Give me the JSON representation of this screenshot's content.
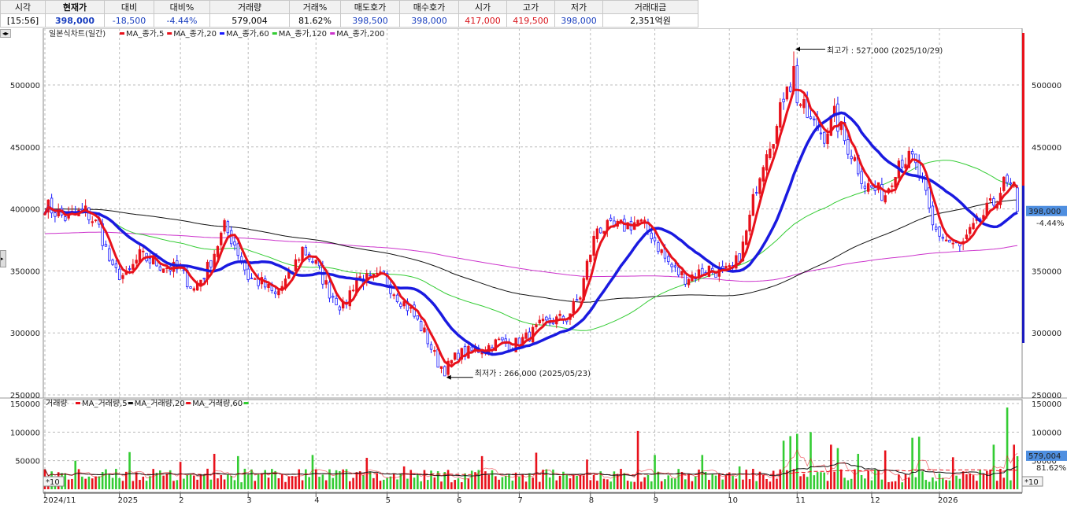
{
  "header": {
    "labels": [
      "시각",
      "현재가",
      "대비",
      "대비%",
      "거래량",
      "거래%",
      "매도호가",
      "매수호가",
      "시가",
      "고가",
      "저가",
      "거래대금"
    ],
    "values": [
      "[15:56]",
      "398,000",
      "-18,500",
      "-4.44%",
      "579,004",
      "81.62%",
      "398,500",
      "398,000",
      "417,000",
      "419,500",
      "398,000",
      "2,351억원"
    ]
  },
  "legend_price": {
    "title": "일본식차트(일간)",
    "items": [
      {
        "name": "MA_종가,5",
        "color": "#e8111b"
      },
      {
        "name": "MA_종가,20",
        "color": "#e8111b"
      },
      {
        "name": "MA_종가,60",
        "color": "#1a1aff"
      },
      {
        "name": "MA_종가,120",
        "color": "#33cc33"
      },
      {
        "name": "MA_종가,200",
        "color": "#cc33cc"
      }
    ]
  },
  "legend_volume": {
    "title": "거래량",
    "items": [
      {
        "name": "MA_거래량,5",
        "color": "#e8111b"
      },
      {
        "name": "MA_거래량,20",
        "color": "#111111"
      },
      {
        "name": "MA_거래량,60",
        "color": "#e8111b"
      }
    ],
    "last_marker_color": "#33cc33"
  },
  "annotations": {
    "high": "최고가 : 527,000 (2025/10/29)",
    "low": "최저가 : 266,000 (2025/05/23)"
  },
  "price_tag": {
    "value": "398,000",
    "change": "-4.44%"
  },
  "volume_tag": {
    "value": "579,004",
    "pct": "81.62%"
  },
  "scale_marker": "*10",
  "chart_data": {
    "type": "candlestick",
    "price_axis": {
      "ticks": [
        250000,
        300000,
        350000,
        400000,
        450000,
        500000
      ],
      "tick_labels": [
        "250000",
        "300000",
        "350000",
        "400000",
        "450000",
        "500000"
      ],
      "ylim": [
        250000,
        540000
      ]
    },
    "volume_axis": {
      "ticks": [
        50000,
        100000,
        150000
      ],
      "tick_labels": [
        "50000",
        "100000",
        "150000"
      ],
      "ylim": [
        0,
        155000
      ]
    },
    "x_labels": [
      "2024/11",
      "2025",
      "2",
      "3",
      "4",
      "5",
      "6",
      "7",
      "8",
      "9",
      "10",
      "11",
      "12",
      "2026"
    ],
    "x_label_index": [
      0,
      22,
      40,
      60,
      80,
      101,
      122,
      140,
      161,
      180,
      202,
      222,
      244,
      264
    ],
    "anchors": [
      [
        0,
        403000
      ],
      [
        6,
        393000
      ],
      [
        12,
        398000
      ],
      [
        16,
        385000
      ],
      [
        20,
        350000
      ],
      [
        24,
        345000
      ],
      [
        28,
        362000
      ],
      [
        34,
        355000
      ],
      [
        40,
        350000
      ],
      [
        44,
        335000
      ],
      [
        48,
        352000
      ],
      [
        53,
        385000
      ],
      [
        56,
        372000
      ],
      [
        60,
        345000
      ],
      [
        64,
        340000
      ],
      [
        68,
        330000
      ],
      [
        72,
        345000
      ],
      [
        76,
        368000
      ],
      [
        80,
        355000
      ],
      [
        84,
        333000
      ],
      [
        88,
        320000
      ],
      [
        92,
        345000
      ],
      [
        96,
        342000
      ],
      [
        100,
        345000
      ],
      [
        104,
        330000
      ],
      [
        108,
        318000
      ],
      [
        112,
        300000
      ],
      [
        116,
        276000
      ],
      [
        118,
        270000
      ],
      [
        122,
        283000
      ],
      [
        126,
        285000
      ],
      [
        130,
        288000
      ],
      [
        134,
        293000
      ],
      [
        138,
        290000
      ],
      [
        142,
        296000
      ],
      [
        146,
        305000
      ],
      [
        150,
        310000
      ],
      [
        154,
        312000
      ],
      [
        158,
        330000
      ],
      [
        160,
        355000
      ],
      [
        163,
        385000
      ],
      [
        167,
        384000
      ],
      [
        171,
        386000
      ],
      [
        175,
        390000
      ],
      [
        179,
        380000
      ],
      [
        183,
        360000
      ],
      [
        186,
        350000
      ],
      [
        189,
        345000
      ],
      [
        192,
        347000
      ],
      [
        196,
        352000
      ],
      [
        200,
        348000
      ],
      [
        203,
        350000
      ],
      [
        206,
        370000
      ],
      [
        208,
        392000
      ],
      [
        210,
        420000
      ],
      [
        213,
        450000
      ],
      [
        216,
        465000
      ],
      [
        219,
        505000
      ],
      [
        222,
        490000
      ],
      [
        226,
        470000
      ],
      [
        230,
        460000
      ],
      [
        233,
        475000
      ],
      [
        236,
        455000
      ],
      [
        239,
        440000
      ],
      [
        242,
        420000
      ],
      [
        245,
        415000
      ],
      [
        248,
        412000
      ],
      [
        252,
        440000
      ],
      [
        256,
        440000
      ],
      [
        259,
        420000
      ],
      [
        262,
        385000
      ],
      [
        266,
        375000
      ],
      [
        270,
        368000
      ],
      [
        273,
        380000
      ],
      [
        277,
        395000
      ],
      [
        280,
        405000
      ],
      [
        283,
        420000
      ],
      [
        286,
        415000
      ],
      [
        287,
        398000
      ]
    ],
    "candle_count": 288,
    "high": {
      "index": 221,
      "value": 527000
    },
    "low": {
      "index": 118,
      "value": 266000
    },
    "ma_periods": [
      5,
      20,
      60,
      120,
      200
    ],
    "volume_spikes": [
      [
        0,
        35000
      ],
      [
        9,
        50000
      ],
      [
        25,
        65000
      ],
      [
        40,
        48000
      ],
      [
        50,
        62000
      ],
      [
        57,
        58000
      ],
      [
        75,
        35000
      ],
      [
        79,
        60000
      ],
      [
        95,
        55000
      ],
      [
        106,
        40000
      ],
      [
        129,
        58000
      ],
      [
        145,
        64000
      ],
      [
        160,
        52000
      ],
      [
        175,
        102000
      ],
      [
        180,
        60000
      ],
      [
        194,
        60000
      ],
      [
        205,
        40000
      ],
      [
        218,
        85000
      ],
      [
        220,
        93000
      ],
      [
        222,
        97000
      ],
      [
        226,
        100000
      ],
      [
        232,
        78000
      ],
      [
        234,
        72000
      ],
      [
        240,
        62000
      ],
      [
        248,
        68000
      ],
      [
        256,
        90000
      ],
      [
        258,
        92000
      ],
      [
        268,
        56000
      ],
      [
        280,
        78000
      ],
      [
        284,
        143000
      ],
      [
        286,
        78000
      ],
      [
        287,
        59000
      ]
    ]
  }
}
